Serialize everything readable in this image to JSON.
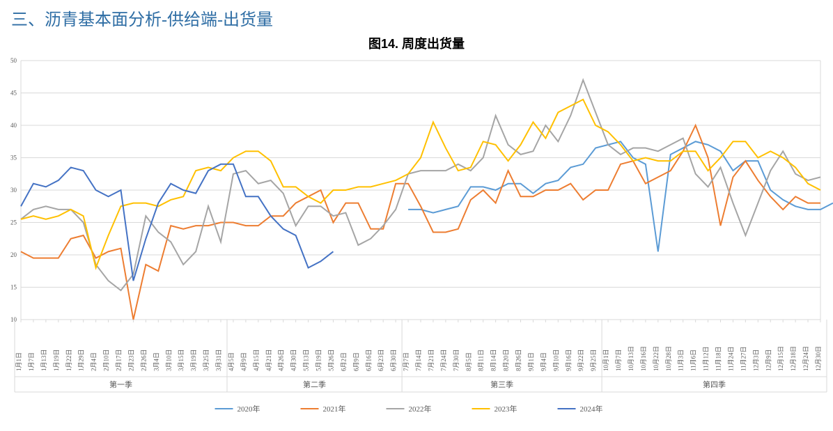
{
  "page_title": "三、沥青基本面分析-供给端-出货量",
  "chart": {
    "type": "line",
    "title": "图14. 周度出货量",
    "title_fontsize": 18,
    "title_font_weight": "bold",
    "background_color": "#ffffff",
    "grid_color": "#d9d9d9",
    "axis_text_color": "#595959",
    "line_width": 2,
    "ylim": [
      10,
      50
    ],
    "ytick_step": 5,
    "yticks": [
      10,
      15,
      20,
      25,
      30,
      35,
      40,
      45,
      50
    ],
    "categories": [
      "1月1日",
      "1月7日",
      "1月13日",
      "1月19日",
      "1月22日",
      "1月29日",
      "2月4日",
      "2月10日",
      "2月17日",
      "2月23日",
      "2月26日",
      "3月4日",
      "3月10日",
      "3月15日",
      "3月19日",
      "3月25日",
      "3月31日",
      "4月5日",
      "4月9日",
      "4月15日",
      "4月21日",
      "4月26日",
      "4月30日",
      "5月13日",
      "5月19日",
      "5月26日",
      "6月2日",
      "6月9日",
      "6月16日",
      "6月23日",
      "6月30日",
      "7月7日",
      "7月14日",
      "7月21日",
      "7月24日",
      "7月30日",
      "8月5日",
      "8月11日",
      "8月14日",
      "8月20日",
      "8月26日",
      "9月1日",
      "9月4日",
      "9月10日",
      "9月16日",
      "9月22日",
      "9月25日",
      "10月1日",
      "10月7日",
      "10月13日",
      "10月16日",
      "10月22日",
      "10月28日",
      "11月3日",
      "11月6日",
      "11月12日",
      "11月18日",
      "11月24日",
      "11月27日",
      "12月3日",
      "12月9日",
      "12月15日",
      "12月18日",
      "12月24日",
      "12月30日"
    ],
    "quarters": [
      {
        "label": "第一季",
        "start": 0,
        "end": 16
      },
      {
        "label": "第二季",
        "start": 17,
        "end": 30
      },
      {
        "label": "第三季",
        "start": 31,
        "end": 46
      },
      {
        "label": "第四季",
        "start": 47,
        "end": 64
      }
    ],
    "legend": {
      "position": "bottom-center",
      "items": [
        {
          "label": "2020年",
          "color": "#5b9bd5"
        },
        {
          "label": "2021年",
          "color": "#ed7d31"
        },
        {
          "label": "2022年",
          "color": "#a5a5a5"
        },
        {
          "label": "2023年",
          "color": "#ffc000"
        },
        {
          "label": "2024年",
          "color": "#4472c4"
        }
      ]
    },
    "series": [
      {
        "name": "2020年",
        "color": "#5b9bd5",
        "start_index": 31,
        "values": [
          27,
          27,
          26.5,
          27,
          27.5,
          30.5,
          30.5,
          30,
          31,
          31,
          29.5,
          31,
          31.5,
          33.5,
          34,
          36.5,
          37,
          37.5,
          35,
          34,
          20.5,
          35.5,
          36.5,
          37.5,
          37,
          36,
          33,
          34.5,
          34.5,
          30,
          28.5,
          27.5,
          27,
          27,
          28
        ]
      },
      {
        "name": "2021年",
        "color": "#ed7d31",
        "start_index": 0,
        "values": [
          20.5,
          19.5,
          19.5,
          19.5,
          22.5,
          23,
          19.5,
          20.5,
          21,
          10,
          18.5,
          17.5,
          24.5,
          24,
          24.5,
          24.5,
          25,
          25,
          24.5,
          24.5,
          26,
          26,
          28,
          29,
          30,
          25,
          28,
          28,
          24,
          24,
          31,
          31,
          27.5,
          23.5,
          23.5,
          24,
          28.5,
          30,
          28,
          33,
          29,
          29,
          30,
          30,
          31,
          28.5,
          30,
          30,
          34,
          34.5,
          31,
          32,
          33,
          36,
          40,
          35,
          24.5,
          32,
          34.5,
          31.5,
          29,
          27,
          29,
          28,
          28
        ]
      },
      {
        "name": "2022年",
        "color": "#a5a5a5",
        "start_index": 0,
        "values": [
          25.5,
          27,
          27.5,
          27,
          27,
          25,
          18.5,
          16,
          14.5,
          17,
          26,
          23.5,
          22,
          18.5,
          20.5,
          27.5,
          22,
          32.5,
          33,
          31,
          31.5,
          29.5,
          24.5,
          27.5,
          27.5,
          26,
          26.5,
          21.5,
          22.5,
          24.5,
          27,
          32.5,
          33,
          33,
          33,
          34,
          33,
          35,
          41.5,
          37,
          35.5,
          36,
          40,
          37.5,
          41.5,
          47,
          42,
          37,
          35.5,
          36.5,
          36.5,
          36,
          37,
          38,
          32.5,
          30.5,
          33.5,
          28,
          23,
          28,
          33,
          36,
          32.5,
          31.5,
          32
        ]
      },
      {
        "name": "2023年",
        "color": "#ffc000",
        "start_index": 0,
        "values": [
          25.5,
          26,
          25.5,
          26,
          27,
          26,
          18,
          23,
          27.5,
          28,
          28,
          27.5,
          28.5,
          29,
          33,
          33.5,
          33,
          35,
          36,
          36,
          34.5,
          30.5,
          30.5,
          29,
          28,
          30,
          30,
          30.5,
          30.5,
          31,
          31.5,
          32.5,
          35,
          40.5,
          36.5,
          33,
          33.5,
          37.5,
          37,
          34.5,
          37,
          40.5,
          38,
          42,
          43,
          44,
          40,
          39,
          37,
          34.5,
          35,
          34.5,
          34.5,
          36,
          36,
          33,
          35,
          37.5,
          37.5,
          35,
          36,
          35,
          33.5,
          31,
          30
        ]
      },
      {
        "name": "2024年",
        "color": "#4472c4",
        "start_index": 0,
        "values": [
          27.5,
          31,
          30.5,
          31.5,
          33.5,
          33,
          30,
          29,
          30,
          16,
          22.5,
          28,
          31,
          30,
          29.5,
          33,
          34,
          34,
          29,
          29,
          26,
          24,
          23,
          18,
          19,
          20.5
        ]
      }
    ]
  }
}
